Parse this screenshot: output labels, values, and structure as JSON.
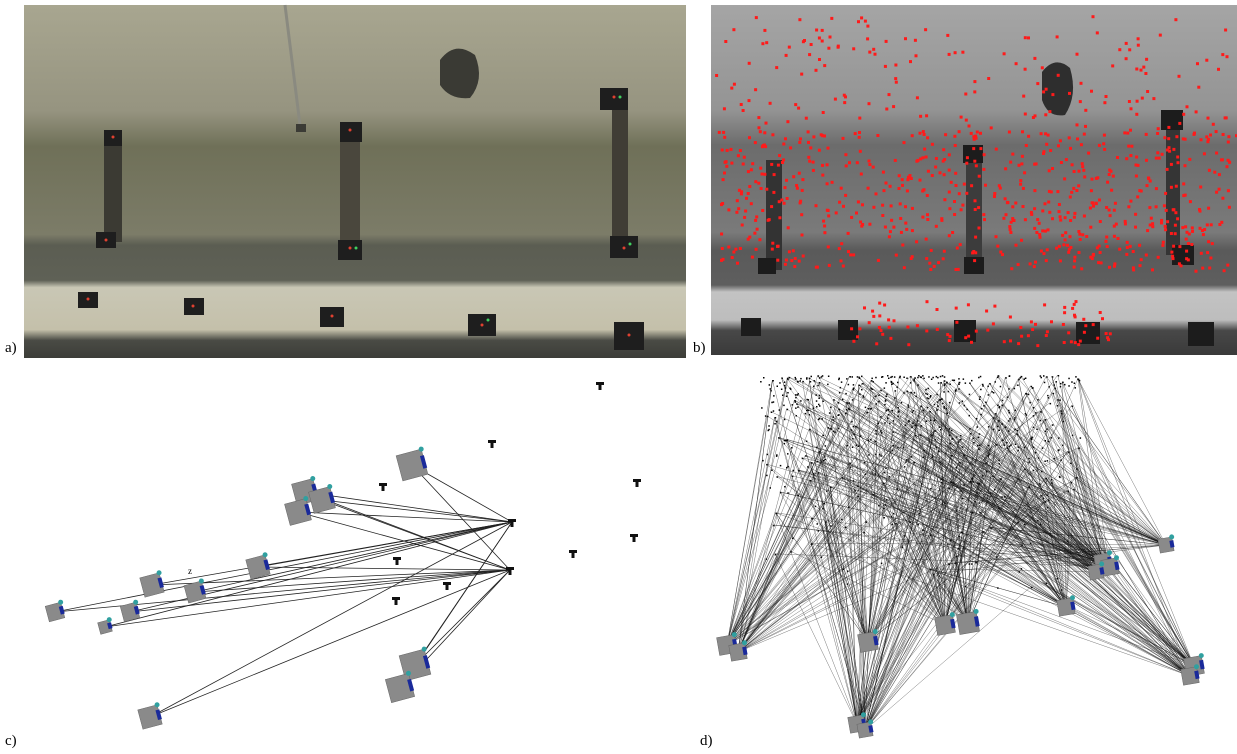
{
  "panels": {
    "a": {
      "label": "a)"
    },
    "b": {
      "label": "b)"
    },
    "c": {
      "label": "c)",
      "axis_label": "z"
    },
    "d": {
      "label": "d)"
    }
  }
}
